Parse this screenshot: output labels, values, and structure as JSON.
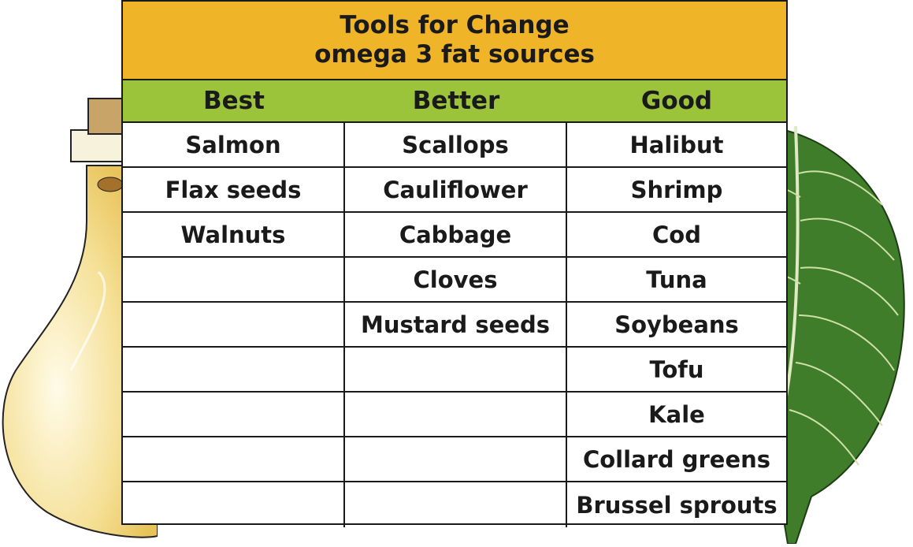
{
  "title": {
    "line1": "Tools for Change",
    "line2": "omega 3 fat sources"
  },
  "columns": [
    "Best",
    "Better",
    "Good"
  ],
  "rows": [
    [
      "Salmon",
      "Scallops",
      "Halibut"
    ],
    [
      "Flax seeds",
      "Cauliflower",
      "Shrimp"
    ],
    [
      "Walnuts",
      "Cabbage",
      "Cod"
    ],
    [
      "",
      "Cloves",
      "Tuna"
    ],
    [
      "",
      "Mustard seeds",
      "Soybeans"
    ],
    [
      "",
      "",
      "Tofu"
    ],
    [
      "",
      "",
      "Kale"
    ],
    [
      "",
      "",
      "Collard greens"
    ],
    [
      "",
      "",
      "Brussel sprouts"
    ]
  ],
  "colors": {
    "title_bg": "#efb427",
    "header_bg": "#9bc43b",
    "leaf": "#3f7d2b",
    "oil": "#f3dc86"
  },
  "illustrations": [
    "oil-bottle",
    "leafy-green"
  ]
}
